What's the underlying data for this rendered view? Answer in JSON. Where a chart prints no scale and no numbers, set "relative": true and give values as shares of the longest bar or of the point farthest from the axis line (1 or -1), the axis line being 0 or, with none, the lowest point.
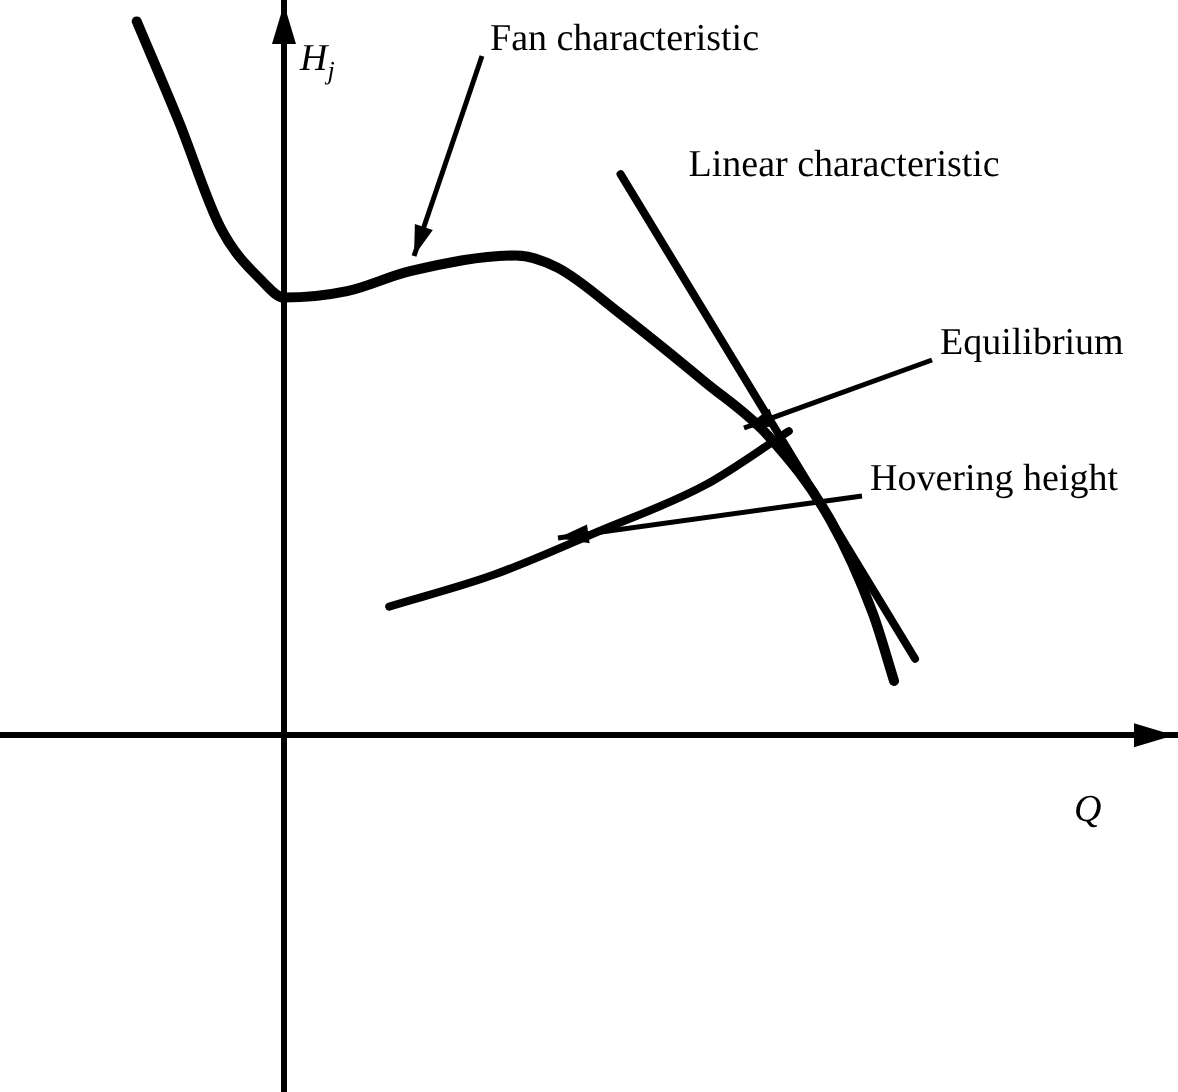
{
  "chart_data": {
    "type": "line",
    "relative": true,
    "xlabel": "Q",
    "ylabel": "H$_{j}$",
    "legend": false,
    "categories": [
      null,
      null,
      null,
      null,
      null,
      null,
      null,
      null,
      null,
      null,
      null,
      null,
      null,
      null,
      null,
      null,
      null,
      null,
      null,
      null,
      null,
      null,
      null,
      null,
      null,
      null,
      null,
      null,
      null,
      null,
      null,
      null,
      null,
      null,
      null,
      null,
      null,
      null
    ],
    "series": [
      {
        "color": "#000000",
        "values": [
          1.0,
          null,
          0.86,
          null,
          0.71,
          null,
          0.635,
          0.613,
          null,
          null,
          0.622,
          null,
          null,
          0.65,
          null,
          null,
          null,
          null,
          0.672,
          null,
          0.655,
          null,
          null,
          0.59,
          null,
          null,
          null,
          0.495,
          null,
          null,
          0.42,
          null,
          null,
          0.3,
          null,
          0.17,
          0.076,
          null
        ]
      },
      {
        "name": "Linear characteristic",
        "color": "#000000",
        "values": [
          null,
          null,
          null,
          null,
          null,
          null,
          null,
          null,
          null,
          null,
          null,
          null,
          null,
          null,
          null,
          null,
          null,
          null,
          null,
          null,
          null,
          null,
          null,
          0.786,
          null,
          null,
          null,
          null,
          null,
          null,
          null,
          null,
          null,
          null,
          null,
          null,
          null,
          0.107
        ]
      },
      {
        "color": "#000000",
        "values": [
          null,
          null,
          null,
          null,
          null,
          null,
          null,
          null,
          null,
          null,
          null,
          null,
          0.18,
          null,
          null,
          null,
          null,
          0.225,
          null,
          null,
          null,
          null,
          0.286,
          null,
          null,
          null,
          null,
          0.35,
          null,
          null,
          null,
          0.426,
          null,
          null,
          null,
          null,
          null,
          null
        ]
      }
    ],
    "annotations": [
      "Fan characteristic",
      "Equilibrium",
      "Hovering height"
    ]
  }
}
